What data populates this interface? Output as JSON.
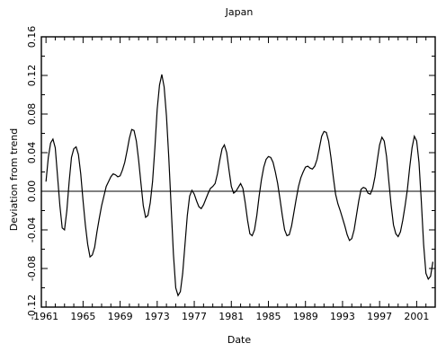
{
  "chart_data": {
    "type": "line",
    "title": "Japan",
    "xlabel": "Date",
    "ylabel": "Deviation from trend",
    "xlim": [
      1960.5,
      2003
    ],
    "ylim": [
      -0.12,
      0.16
    ],
    "x_ticks": [
      1961,
      1965,
      1969,
      1973,
      1977,
      1981,
      1985,
      1989,
      1993,
      1997,
      2001
    ],
    "y_ticks": [
      -0.12,
      -0.08,
      -0.04,
      0.0,
      0.04,
      0.08,
      0.12,
      0.16
    ],
    "y_tick_labels": [
      "-0.12",
      "-0.08",
      "-0.04",
      "0.00",
      "0.04",
      "0.08",
      "0.12",
      "0.16"
    ],
    "zero_line": true,
    "grid": false,
    "series": [
      {
        "values": [
          [
            1961.0,
            0.01
          ],
          [
            1961.25,
            0.035
          ],
          [
            1961.5,
            0.05
          ],
          [
            1961.75,
            0.054
          ],
          [
            1962.0,
            0.045
          ],
          [
            1962.25,
            0.015
          ],
          [
            1962.5,
            -0.015
          ],
          [
            1962.75,
            -0.038
          ],
          [
            1963.0,
            -0.04
          ],
          [
            1963.25,
            -0.02
          ],
          [
            1963.5,
            0.01
          ],
          [
            1963.75,
            0.035
          ],
          [
            1964.0,
            0.044
          ],
          [
            1964.25,
            0.046
          ],
          [
            1964.5,
            0.038
          ],
          [
            1964.75,
            0.018
          ],
          [
            1965.0,
            -0.01
          ],
          [
            1965.25,
            -0.035
          ],
          [
            1965.5,
            -0.055
          ],
          [
            1965.75,
            -0.068
          ],
          [
            1966.0,
            -0.066
          ],
          [
            1966.25,
            -0.058
          ],
          [
            1966.5,
            -0.042
          ],
          [
            1966.75,
            -0.028
          ],
          [
            1967.0,
            -0.015
          ],
          [
            1967.25,
            -0.005
          ],
          [
            1967.5,
            0.005
          ],
          [
            1967.75,
            0.01
          ],
          [
            1968.0,
            0.015
          ],
          [
            1968.25,
            0.018
          ],
          [
            1968.5,
            0.017
          ],
          [
            1968.75,
            0.015
          ],
          [
            1969.0,
            0.016
          ],
          [
            1969.25,
            0.022
          ],
          [
            1969.5,
            0.03
          ],
          [
            1969.75,
            0.042
          ],
          [
            1970.0,
            0.055
          ],
          [
            1970.25,
            0.064
          ],
          [
            1970.5,
            0.063
          ],
          [
            1970.75,
            0.052
          ],
          [
            1971.0,
            0.032
          ],
          [
            1971.25,
            0.008
          ],
          [
            1971.5,
            -0.015
          ],
          [
            1971.75,
            -0.027
          ],
          [
            1972.0,
            -0.025
          ],
          [
            1972.25,
            -0.012
          ],
          [
            1972.5,
            0.01
          ],
          [
            1972.75,
            0.045
          ],
          [
            1973.0,
            0.085
          ],
          [
            1973.25,
            0.11
          ],
          [
            1973.5,
            0.121
          ],
          [
            1973.75,
            0.108
          ],
          [
            1974.0,
            0.078
          ],
          [
            1974.25,
            0.035
          ],
          [
            1974.5,
            -0.015
          ],
          [
            1974.75,
            -0.065
          ],
          [
            1975.0,
            -0.1
          ],
          [
            1975.25,
            -0.108
          ],
          [
            1975.5,
            -0.104
          ],
          [
            1975.75,
            -0.085
          ],
          [
            1976.0,
            -0.055
          ],
          [
            1976.25,
            -0.025
          ],
          [
            1976.5,
            -0.005
          ],
          [
            1976.75,
            0.001
          ],
          [
            1977.0,
            -0.003
          ],
          [
            1977.25,
            -0.01
          ],
          [
            1977.5,
            -0.016
          ],
          [
            1977.75,
            -0.018
          ],
          [
            1978.0,
            -0.014
          ],
          [
            1978.25,
            -0.008
          ],
          [
            1978.5,
            -0.002
          ],
          [
            1978.75,
            0.003
          ],
          [
            1979.0,
            0.005
          ],
          [
            1979.25,
            0.008
          ],
          [
            1979.5,
            0.018
          ],
          [
            1979.75,
            0.032
          ],
          [
            1980.0,
            0.044
          ],
          [
            1980.25,
            0.048
          ],
          [
            1980.5,
            0.04
          ],
          [
            1980.75,
            0.022
          ],
          [
            1981.0,
            0.005
          ],
          [
            1981.25,
            -0.002
          ],
          [
            1981.5,
            0.0
          ],
          [
            1981.75,
            0.004
          ],
          [
            1982.0,
            0.008
          ],
          [
            1982.25,
            0.003
          ],
          [
            1982.5,
            -0.012
          ],
          [
            1982.75,
            -0.03
          ],
          [
            1983.0,
            -0.044
          ],
          [
            1983.25,
            -0.046
          ],
          [
            1983.5,
            -0.04
          ],
          [
            1983.75,
            -0.025
          ],
          [
            1984.0,
            -0.005
          ],
          [
            1984.25,
            0.012
          ],
          [
            1984.5,
            0.025
          ],
          [
            1984.75,
            0.033
          ],
          [
            1985.0,
            0.036
          ],
          [
            1985.25,
            0.035
          ],
          [
            1985.5,
            0.03
          ],
          [
            1985.75,
            0.02
          ],
          [
            1986.0,
            0.008
          ],
          [
            1986.25,
            -0.008
          ],
          [
            1986.5,
            -0.025
          ],
          [
            1986.75,
            -0.04
          ],
          [
            1987.0,
            -0.046
          ],
          [
            1987.25,
            -0.045
          ],
          [
            1987.5,
            -0.036
          ],
          [
            1987.75,
            -0.022
          ],
          [
            1988.0,
            -0.008
          ],
          [
            1988.25,
            0.005
          ],
          [
            1988.5,
            0.014
          ],
          [
            1988.75,
            0.02
          ],
          [
            1989.0,
            0.025
          ],
          [
            1989.25,
            0.026
          ],
          [
            1989.5,
            0.024
          ],
          [
            1989.75,
            0.023
          ],
          [
            1990.0,
            0.026
          ],
          [
            1990.25,
            0.033
          ],
          [
            1990.5,
            0.045
          ],
          [
            1990.75,
            0.057
          ],
          [
            1991.0,
            0.062
          ],
          [
            1991.25,
            0.061
          ],
          [
            1991.5,
            0.052
          ],
          [
            1991.75,
            0.035
          ],
          [
            1992.0,
            0.015
          ],
          [
            1992.25,
            -0.003
          ],
          [
            1992.5,
            -0.013
          ],
          [
            1992.75,
            -0.02
          ],
          [
            1993.0,
            -0.028
          ],
          [
            1993.25,
            -0.036
          ],
          [
            1993.5,
            -0.045
          ],
          [
            1993.75,
            -0.051
          ],
          [
            1994.0,
            -0.049
          ],
          [
            1994.25,
            -0.04
          ],
          [
            1994.5,
            -0.025
          ],
          [
            1994.75,
            -0.01
          ],
          [
            1995.0,
            0.002
          ],
          [
            1995.25,
            0.004
          ],
          [
            1995.5,
            0.003
          ],
          [
            1995.75,
            -0.002
          ],
          [
            1996.0,
            -0.003
          ],
          [
            1996.25,
            0.003
          ],
          [
            1996.5,
            0.015
          ],
          [
            1996.75,
            0.032
          ],
          [
            1997.0,
            0.048
          ],
          [
            1997.25,
            0.056
          ],
          [
            1997.5,
            0.052
          ],
          [
            1997.75,
            0.036
          ],
          [
            1998.0,
            0.01
          ],
          [
            1998.25,
            -0.015
          ],
          [
            1998.5,
            -0.035
          ],
          [
            1998.75,
            -0.044
          ],
          [
            1999.0,
            -0.047
          ],
          [
            1999.25,
            -0.042
          ],
          [
            1999.5,
            -0.03
          ],
          [
            1999.75,
            -0.015
          ],
          [
            2000.0,
            0.002
          ],
          [
            2000.25,
            0.025
          ],
          [
            2000.5,
            0.045
          ],
          [
            2000.75,
            0.057
          ],
          [
            2001.0,
            0.052
          ],
          [
            2001.25,
            0.03
          ],
          [
            2001.5,
            -0.01
          ],
          [
            2001.75,
            -0.055
          ],
          [
            2002.0,
            -0.085
          ],
          [
            2002.25,
            -0.091
          ],
          [
            2002.5,
            -0.088
          ],
          [
            2002.75,
            -0.073
          ]
        ]
      }
    ]
  }
}
